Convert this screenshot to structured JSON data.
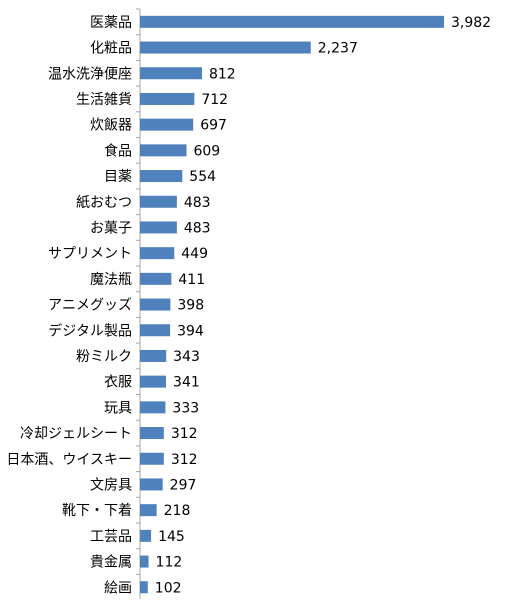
{
  "chart_data": {
    "type": "bar",
    "orientation": "horizontal",
    "categories": [
      "医薬品",
      "化粧品",
      "温水洗浄便座",
      "生活雑貨",
      "炊飯器",
      "食品",
      "目薬",
      "紙おむつ",
      "お菓子",
      "サプリメント",
      "魔法瓶",
      "アニメグッズ",
      "デジタル製品",
      "粉ミルク",
      "衣服",
      "玩具",
      "冷却ジェルシート",
      "日本酒、ウイスキー",
      "文房具",
      "靴下・下着",
      "工芸品",
      "貴金属",
      "絵画"
    ],
    "values": [
      3982,
      2237,
      812,
      712,
      697,
      609,
      554,
      483,
      483,
      449,
      411,
      398,
      394,
      343,
      341,
      333,
      312,
      312,
      297,
      218,
      145,
      112,
      102
    ],
    "value_labels": [
      "3,982",
      "2,237",
      "812",
      "712",
      "697",
      "609",
      "554",
      "483",
      "483",
      "449",
      "411",
      "398",
      "394",
      "343",
      "341",
      "333",
      "312",
      "312",
      "297",
      "218",
      "145",
      "112",
      "102"
    ],
    "xlim": [
      0,
      3982
    ],
    "grid": false,
    "legend": "none",
    "bar_color": "#4f81bd"
  }
}
